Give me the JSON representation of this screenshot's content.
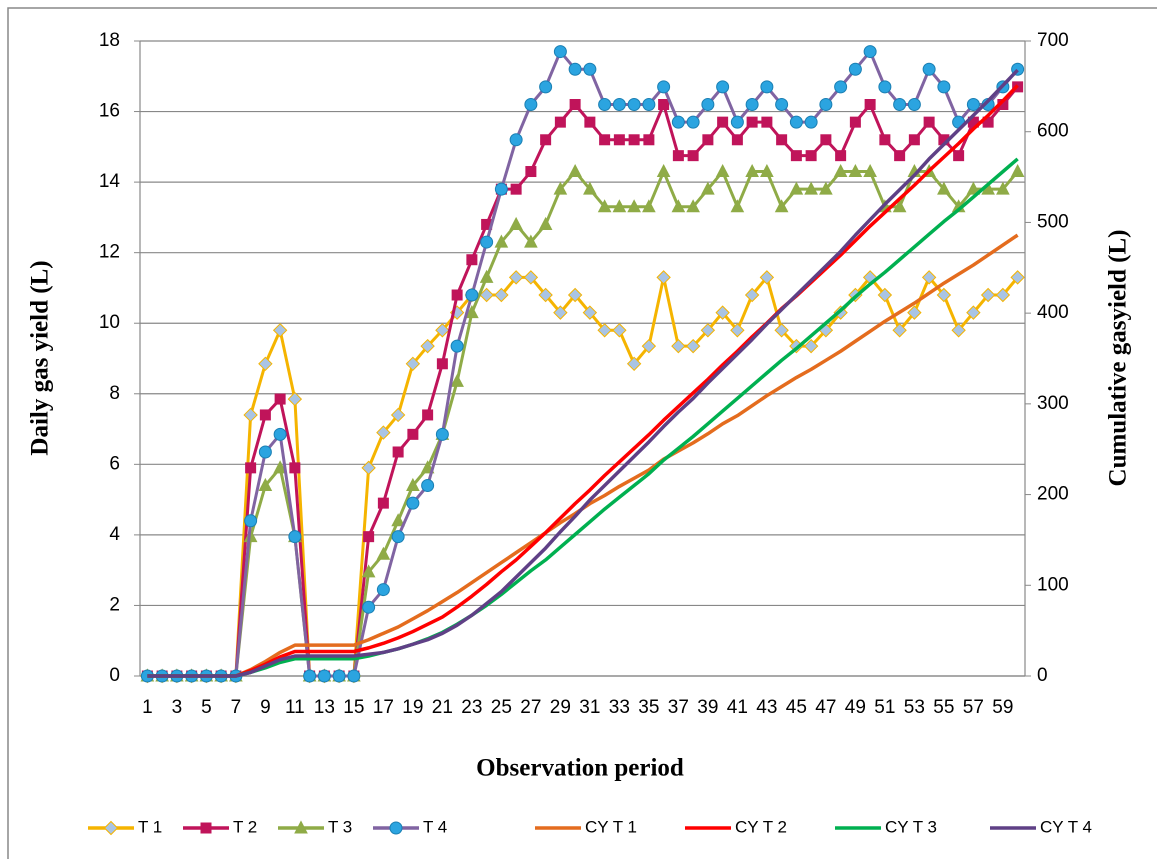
{
  "chart_data": {
    "type": "line",
    "x_label": "Observation period",
    "y_label": "Daily gas yield (L)",
    "y2_label": "Cumulative gasyield (L)",
    "categories": [
      1,
      null,
      3,
      null,
      5,
      null,
      7,
      null,
      9,
      null,
      11,
      null,
      13,
      null,
      15,
      null,
      17,
      null,
      19,
      null,
      21,
      null,
      23,
      null,
      25,
      null,
      27,
      null,
      29,
      null,
      31,
      null,
      33,
      null,
      35,
      null,
      37,
      null,
      39,
      null,
      41,
      null,
      43,
      null,
      45,
      null,
      47,
      null,
      49,
      null,
      51,
      null,
      53,
      null,
      55,
      null,
      57,
      null,
      59,
      null
    ],
    "ylim": [
      0,
      18
    ],
    "yticks": [
      0,
      2,
      4,
      6,
      8,
      10,
      12,
      14,
      16,
      18
    ],
    "y2lim": [
      0,
      700
    ],
    "y2ticks": [
      0,
      100,
      200,
      300,
      400,
      500,
      600,
      700
    ],
    "grid": true,
    "legend": "bottom",
    "series": [
      {
        "name": "T 1",
        "color": "#f5b400",
        "marker": "diamond",
        "marker_color": "#a9c4e4",
        "values": [
          0,
          0,
          0,
          0,
          0,
          0,
          0,
          7.4,
          8.85,
          9.8,
          7.85,
          0,
          0,
          0,
          0,
          5.9,
          6.9,
          7.4,
          8.85,
          9.35,
          9.8,
          10.3,
          10.8,
          10.8,
          10.8,
          11.3,
          11.3,
          10.8,
          10.3,
          10.8,
          10.3,
          9.8,
          9.8,
          8.85,
          9.35,
          11.3,
          9.35,
          9.35,
          9.8,
          10.3,
          9.8,
          10.8,
          11.3,
          9.8,
          9.35,
          9.35,
          9.8,
          10.3,
          10.8,
          11.3,
          10.8,
          9.8,
          10.3,
          11.3,
          10.8,
          9.8,
          10.3,
          10.8,
          10.8,
          11.3
        ]
      },
      {
        "name": "T 2",
        "color": "#c0145a",
        "marker": "square",
        "marker_color": "#c0145a",
        "values": [
          0,
          0,
          0,
          0,
          0,
          0,
          0,
          5.9,
          7.4,
          7.85,
          5.9,
          0,
          0,
          0,
          0,
          3.95,
          4.9,
          6.35,
          6.85,
          7.4,
          8.85,
          10.8,
          11.8,
          12.8,
          13.8,
          13.8,
          14.3,
          15.2,
          15.7,
          16.2,
          15.7,
          15.2,
          15.2,
          15.2,
          15.2,
          16.2,
          14.75,
          14.75,
          15.2,
          15.7,
          15.2,
          15.7,
          15.7,
          15.2,
          14.75,
          14.75,
          15.2,
          14.75,
          15.7,
          16.2,
          15.2,
          14.75,
          15.2,
          15.7,
          15.2,
          14.75,
          15.7,
          15.7,
          16.2,
          16.7
        ]
      },
      {
        "name": "T 3",
        "color": "#8fab47",
        "marker": "triangle",
        "marker_color": "#8fab47",
        "values": [
          0,
          0,
          0,
          0,
          0,
          0,
          0,
          3.95,
          5.4,
          5.9,
          3.95,
          0,
          0,
          0,
          0,
          2.95,
          3.45,
          4.4,
          5.4,
          5.9,
          6.85,
          8.35,
          10.3,
          11.3,
          12.3,
          12.8,
          12.3,
          12.8,
          13.8,
          14.3,
          13.8,
          13.3,
          13.3,
          13.3,
          13.3,
          14.3,
          13.3,
          13.3,
          13.8,
          14.3,
          13.3,
          14.3,
          14.3,
          13.3,
          13.8,
          13.8,
          13.8,
          14.3,
          14.3,
          14.3,
          13.3,
          13.3,
          14.3,
          14.3,
          13.8,
          13.3,
          13.8,
          13.8,
          13.8,
          14.3
        ]
      },
      {
        "name": "T 4",
        "color": "#8064a2",
        "marker": "circle",
        "marker_color": "#2ba4e0",
        "values": [
          0,
          0,
          0,
          0,
          0,
          0,
          0,
          4.4,
          6.35,
          6.85,
          3.95,
          0,
          0,
          0,
          0,
          1.95,
          2.45,
          3.95,
          4.9,
          5.4,
          6.85,
          9.35,
          10.8,
          12.3,
          13.8,
          15.2,
          16.2,
          16.7,
          17.7,
          17.2,
          17.2,
          16.2,
          16.2,
          16.2,
          16.2,
          16.7,
          15.7,
          15.7,
          16.2,
          16.7,
          15.7,
          16.2,
          16.7,
          16.2,
          15.7,
          15.7,
          16.2,
          16.7,
          17.2,
          17.7,
          16.7,
          16.2,
          16.2,
          17.2,
          16.7,
          15.7,
          16.2,
          16.2,
          16.7,
          17.2
        ]
      },
      {
        "name": "CY T 1",
        "color": "#e46c1e",
        "axis": "y2",
        "values": [
          0,
          0,
          0,
          0,
          0,
          0,
          0,
          7,
          16,
          26,
          34,
          34,
          34,
          34,
          34,
          40,
          47,
          54,
          63,
          72,
          82,
          92,
          103,
          114,
          125,
          136,
          147,
          158,
          169,
          179,
          190,
          199,
          209,
          218,
          227,
          239,
          248,
          257,
          267,
          278,
          287,
          298,
          309,
          319,
          329,
          338,
          348,
          358,
          369,
          380,
          391,
          401,
          411,
          422,
          433,
          443,
          453,
          464,
          475,
          486
        ]
      },
      {
        "name": "CY T 2",
        "color": "#ff0000",
        "axis": "y2",
        "values": [
          0,
          0,
          0,
          0,
          0,
          0,
          0,
          6,
          13,
          21,
          27,
          27,
          27,
          27,
          27,
          31,
          36,
          42,
          49,
          57,
          65,
          76,
          88,
          101,
          115,
          128,
          143,
          158,
          174,
          190,
          205,
          221,
          236,
          251,
          266,
          282,
          297,
          312,
          327,
          343,
          358,
          374,
          389,
          405,
          419,
          434,
          449,
          464,
          480,
          496,
          511,
          526,
          541,
          557,
          572,
          587,
          603,
          618,
          634,
          651
        ]
      },
      {
        "name": "CY T 3",
        "color": "#00b050",
        "axis": "y2",
        "values": [
          0,
          0,
          0,
          0,
          0,
          0,
          0,
          4,
          9,
          15,
          19,
          19,
          19,
          19,
          19,
          22,
          26,
          30,
          35,
          41,
          48,
          57,
          67,
          78,
          90,
          103,
          116,
          128,
          142,
          156,
          170,
          184,
          197,
          210,
          223,
          238,
          251,
          264,
          278,
          292,
          306,
          320,
          334,
          348,
          361,
          375,
          389,
          403,
          418,
          432,
          445,
          459,
          473,
          487,
          501,
          514,
          528,
          542,
          556,
          570
        ]
      },
      {
        "name": "CY T 4",
        "color": "#5f4086",
        "axis": "y2",
        "values": [
          0,
          0,
          0,
          0,
          0,
          0,
          0,
          4,
          11,
          18,
          22,
          22,
          22,
          22,
          22,
          24,
          26,
          30,
          35,
          40,
          47,
          56,
          67,
          80,
          93,
          109,
          125,
          141,
          159,
          176,
          194,
          210,
          226,
          242,
          258,
          275,
          291,
          306,
          323,
          339,
          355,
          371,
          388,
          404,
          420,
          436,
          452,
          468,
          486,
          503,
          520,
          536,
          552,
          570,
          586,
          602,
          618,
          634,
          651,
          668
        ]
      }
    ]
  }
}
